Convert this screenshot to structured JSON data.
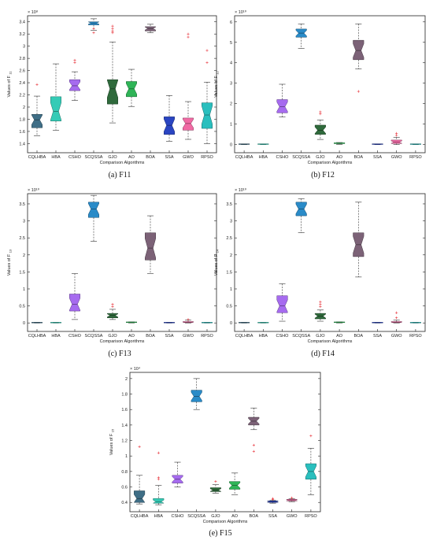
{
  "algorithms": [
    "CQLHBA",
    "HBA",
    "CSHO",
    "SCQSSA",
    "GJO",
    "AO",
    "BOA",
    "SSA",
    "GWO",
    "RPSO"
  ],
  "colors": [
    "#3f6e86",
    "#35cbb6",
    "#a66bef",
    "#2a8bc8",
    "#2f6a3c",
    "#2fb457",
    "#7c6277",
    "#2a45c2",
    "#f06aa4",
    "#2abfbe"
  ],
  "outlier_color": "#e8323a",
  "xlabel": "Comparison Algorithms",
  "captions": [
    "(a) F11",
    "(b) F12",
    "(c) F13",
    "(d) F14",
    "(e) F15"
  ],
  "chart_data": [
    {
      "type": "box",
      "id": "F11",
      "ylabel": "Values of F",
      "ylabel_sub": "11",
      "exponent": "× 10⁸",
      "ylim": [
        1.25,
        3.5
      ],
      "yticks": [
        1.4,
        1.6,
        1.8,
        2,
        2.2,
        2.4,
        2.6,
        2.8,
        3,
        3.2,
        3.4
      ],
      "ytick_labels": [
        "1.4",
        "1.6",
        "1.8",
        "2",
        "2.2",
        "2.4",
        "2.6",
        "2.8",
        "3",
        "3.2",
        "3.4"
      ],
      "boxes": [
        {
          "min": 1.53,
          "q1": 1.66,
          "med": 1.79,
          "q3": 1.88,
          "max": 2.18,
          "outliers": [
            2.37
          ]
        },
        {
          "min": 1.62,
          "q1": 1.77,
          "med": 1.93,
          "q3": 2.17,
          "max": 2.71,
          "outliers": []
        },
        {
          "min": 2.11,
          "q1": 2.27,
          "med": 2.35,
          "q3": 2.45,
          "max": 2.58,
          "outliers": [
            2.73,
            2.77
          ]
        },
        {
          "min": 3.26,
          "q1": 3.35,
          "med": 3.38,
          "q3": 3.4,
          "max": 3.45,
          "outliers": [
            3.22,
            3.29
          ]
        },
        {
          "min": 1.74,
          "q1": 2.05,
          "med": 2.3,
          "q3": 2.45,
          "max": 3.07,
          "outliers": [
            3.22,
            3.25,
            3.29,
            3.33
          ]
        },
        {
          "min": 2.01,
          "q1": 2.17,
          "med": 2.3,
          "q3": 2.42,
          "max": 2.62,
          "outliers": []
        },
        {
          "min": 3.22,
          "q1": 3.25,
          "med": 3.29,
          "q3": 3.32,
          "max": 3.36,
          "outliers": []
        },
        {
          "min": 1.44,
          "q1": 1.55,
          "med": 1.7,
          "q3": 1.84,
          "max": 2.19,
          "outliers": []
        },
        {
          "min": 1.47,
          "q1": 1.62,
          "med": 1.73,
          "q3": 1.82,
          "max": 2.09,
          "outliers": [
            3.15,
            3.2
          ]
        },
        {
          "min": 1.4,
          "q1": 1.65,
          "med": 1.87,
          "q3": 2.07,
          "max": 2.41,
          "outliers": [
            2.73,
            2.93
          ]
        }
      ]
    },
    {
      "type": "box",
      "id": "F12",
      "ylabel": "Values of F",
      "ylabel_sub": "12",
      "exponent": "× 10¹⁰",
      "ylim": [
        -0.4,
        6.3
      ],
      "yticks": [
        0,
        1,
        2,
        3,
        4,
        5,
        6
      ],
      "ytick_labels": [
        "0",
        "1",
        "2",
        "3",
        "4",
        "5",
        "6"
      ],
      "boxes": [
        {
          "min": 0,
          "q1": 0,
          "med": 0,
          "q3": 0.02,
          "max": 0.03,
          "outliers": []
        },
        {
          "min": 0,
          "q1": 0,
          "med": 0,
          "q3": 0.02,
          "max": 0.03,
          "outliers": []
        },
        {
          "min": 1.35,
          "q1": 1.55,
          "med": 1.85,
          "q3": 2.2,
          "max": 2.95,
          "outliers": []
        },
        {
          "min": 4.7,
          "q1": 5.25,
          "med": 5.45,
          "q3": 5.65,
          "max": 5.9,
          "outliers": []
        },
        {
          "min": 0.25,
          "q1": 0.5,
          "med": 0.7,
          "q3": 0.95,
          "max": 1.2,
          "outliers": [
            1.5,
            1.6
          ]
        },
        {
          "min": 0.01,
          "q1": 0.03,
          "med": 0.05,
          "q3": 0.07,
          "max": 0.1,
          "outliers": []
        },
        {
          "min": 3.7,
          "q1": 4.15,
          "med": 4.6,
          "q3": 5.1,
          "max": 5.9,
          "outliers": [
            2.6
          ]
        },
        {
          "min": 0,
          "q1": 0,
          "med": 0,
          "q3": 0.02,
          "max": 0.03,
          "outliers": []
        },
        {
          "min": 0,
          "q1": 0.05,
          "med": 0.12,
          "q3": 0.22,
          "max": 0.35,
          "outliers": [
            0.45,
            0.55
          ]
        },
        {
          "min": 0,
          "q1": 0,
          "med": 0,
          "q3": 0.02,
          "max": 0.03,
          "outliers": []
        }
      ]
    },
    {
      "type": "box",
      "id": "F13",
      "ylabel": "Values of F",
      "ylabel_sub": "13",
      "exponent": "× 10¹⁰",
      "ylim": [
        -0.25,
        3.8
      ],
      "yticks": [
        0,
        0.5,
        1,
        1.5,
        2,
        2.5,
        3,
        3.5
      ],
      "ytick_labels": [
        "0",
        "0.5",
        "1",
        "1.5",
        "2",
        "2.5",
        "3",
        "3.5"
      ],
      "boxes": [
        {
          "min": 0,
          "q1": 0,
          "med": 0,
          "q3": 0.01,
          "max": 0.02,
          "outliers": []
        },
        {
          "min": 0,
          "q1": 0,
          "med": 0,
          "q3": 0.01,
          "max": 0.02,
          "outliers": []
        },
        {
          "min": 0.1,
          "q1": 0.35,
          "med": 0.55,
          "q3": 0.85,
          "max": 1.45,
          "outliers": []
        },
        {
          "min": 2.4,
          "q1": 3.1,
          "med": 3.35,
          "q3": 3.55,
          "max": 3.75,
          "outliers": []
        },
        {
          "min": 0.1,
          "q1": 0.15,
          "med": 0.22,
          "q3": 0.28,
          "max": 0.4,
          "outliers": [
            0.48,
            0.55
          ]
        },
        {
          "min": 0,
          "q1": 0,
          "med": 0.01,
          "q3": 0.02,
          "max": 0.03,
          "outliers": []
        },
        {
          "min": 1.45,
          "q1": 1.85,
          "med": 2.2,
          "q3": 2.65,
          "max": 3.15,
          "outliers": []
        },
        {
          "min": 0,
          "q1": 0,
          "med": 0,
          "q3": 0.01,
          "max": 0.02,
          "outliers": []
        },
        {
          "min": 0,
          "q1": 0.01,
          "med": 0.02,
          "q3": 0.04,
          "max": 0.08,
          "outliers": [
            0.1
          ]
        },
        {
          "min": 0,
          "q1": 0,
          "med": 0,
          "q3": 0.01,
          "max": 0.02,
          "outliers": []
        }
      ]
    },
    {
      "type": "box",
      "id": "F14",
      "ylabel": "Values of F",
      "ylabel_sub": "14",
      "exponent": "× 10¹⁰",
      "ylim": [
        -0.25,
        3.8
      ],
      "yticks": [
        0,
        0.5,
        1,
        1.5,
        2,
        2.5,
        3,
        3.5
      ],
      "ytick_labels": [
        "0",
        "0.5",
        "1",
        "1.5",
        "2",
        "2.5",
        "3",
        "3.5"
      ],
      "boxes": [
        {
          "min": 0,
          "q1": 0,
          "med": 0,
          "q3": 0.01,
          "max": 0.02,
          "outliers": []
        },
        {
          "min": 0,
          "q1": 0,
          "med": 0,
          "q3": 0.01,
          "max": 0.02,
          "outliers": []
        },
        {
          "min": 0.05,
          "q1": 0.3,
          "med": 0.5,
          "q3": 0.8,
          "max": 1.15,
          "outliers": []
        },
        {
          "min": 2.65,
          "q1": 3.15,
          "med": 3.35,
          "q3": 3.55,
          "max": 3.65,
          "outliers": []
        },
        {
          "min": 0.05,
          "q1": 0.12,
          "med": 0.2,
          "q3": 0.28,
          "max": 0.38,
          "outliers": [
            0.48,
            0.55,
            0.62
          ]
        },
        {
          "min": 0,
          "q1": 0,
          "med": 0.01,
          "q3": 0.02,
          "max": 0.03,
          "outliers": []
        },
        {
          "min": 1.35,
          "q1": 1.95,
          "med": 2.3,
          "q3": 2.65,
          "max": 3.55,
          "outliers": []
        },
        {
          "min": 0,
          "q1": 0,
          "med": 0,
          "q3": 0.01,
          "max": 0.02,
          "outliers": []
        },
        {
          "min": 0,
          "q1": 0.01,
          "med": 0.02,
          "q3": 0.04,
          "max": 0.08,
          "outliers": [
            0.15,
            0.3
          ]
        },
        {
          "min": 0,
          "q1": 0,
          "med": 0,
          "q3": 0.01,
          "max": 0.02,
          "outliers": []
        }
      ]
    },
    {
      "type": "box",
      "id": "F15",
      "ylabel": "Values of F",
      "ylabel_sub": "15",
      "exponent": "× 10⁴",
      "ylim": [
        0.28,
        2.08
      ],
      "yticks": [
        0.4,
        0.6,
        0.8,
        1,
        1.2,
        1.4,
        1.6,
        1.8,
        2
      ],
      "ytick_labels": [
        "0.4",
        "0.6",
        "0.8",
        "1",
        "1.2",
        "1.4",
        "1.6",
        "1.8",
        "2"
      ],
      "boxes": [
        {
          "min": 0.38,
          "q1": 0.4,
          "med": 0.45,
          "q3": 0.55,
          "max": 0.75,
          "outliers": [
            1.12
          ]
        },
        {
          "min": 0.37,
          "q1": 0.39,
          "med": 0.41,
          "q3": 0.45,
          "max": 0.62,
          "outliers": [
            0.7,
            0.72,
            1.04
          ]
        },
        {
          "min": 0.6,
          "q1": 0.65,
          "med": 0.7,
          "q3": 0.75,
          "max": 0.92,
          "outliers": []
        },
        {
          "min": 1.6,
          "q1": 1.7,
          "med": 1.77,
          "q3": 1.85,
          "max": 2.0,
          "outliers": []
        },
        {
          "min": 0.52,
          "q1": 0.54,
          "med": 0.56,
          "q3": 0.59,
          "max": 0.63,
          "outliers": [
            0.67
          ]
        },
        {
          "min": 0.5,
          "q1": 0.57,
          "med": 0.62,
          "q3": 0.67,
          "max": 0.78,
          "outliers": []
        },
        {
          "min": 1.34,
          "q1": 1.4,
          "med": 1.45,
          "q3": 1.5,
          "max": 1.62,
          "outliers": [
            1.06,
            1.14
          ]
        },
        {
          "min": 0.39,
          "q1": 0.4,
          "med": 0.41,
          "q3": 0.42,
          "max": 0.43,
          "outliers": [
            0.44,
            0.45
          ]
        },
        {
          "min": 0.41,
          "q1": 0.42,
          "med": 0.43,
          "q3": 0.44,
          "max": 0.45,
          "outliers": [
            0.46
          ]
        },
        {
          "min": 0.5,
          "q1": 0.7,
          "med": 0.8,
          "q3": 0.9,
          "max": 1.1,
          "outliers": [
            1.26
          ]
        }
      ]
    }
  ]
}
